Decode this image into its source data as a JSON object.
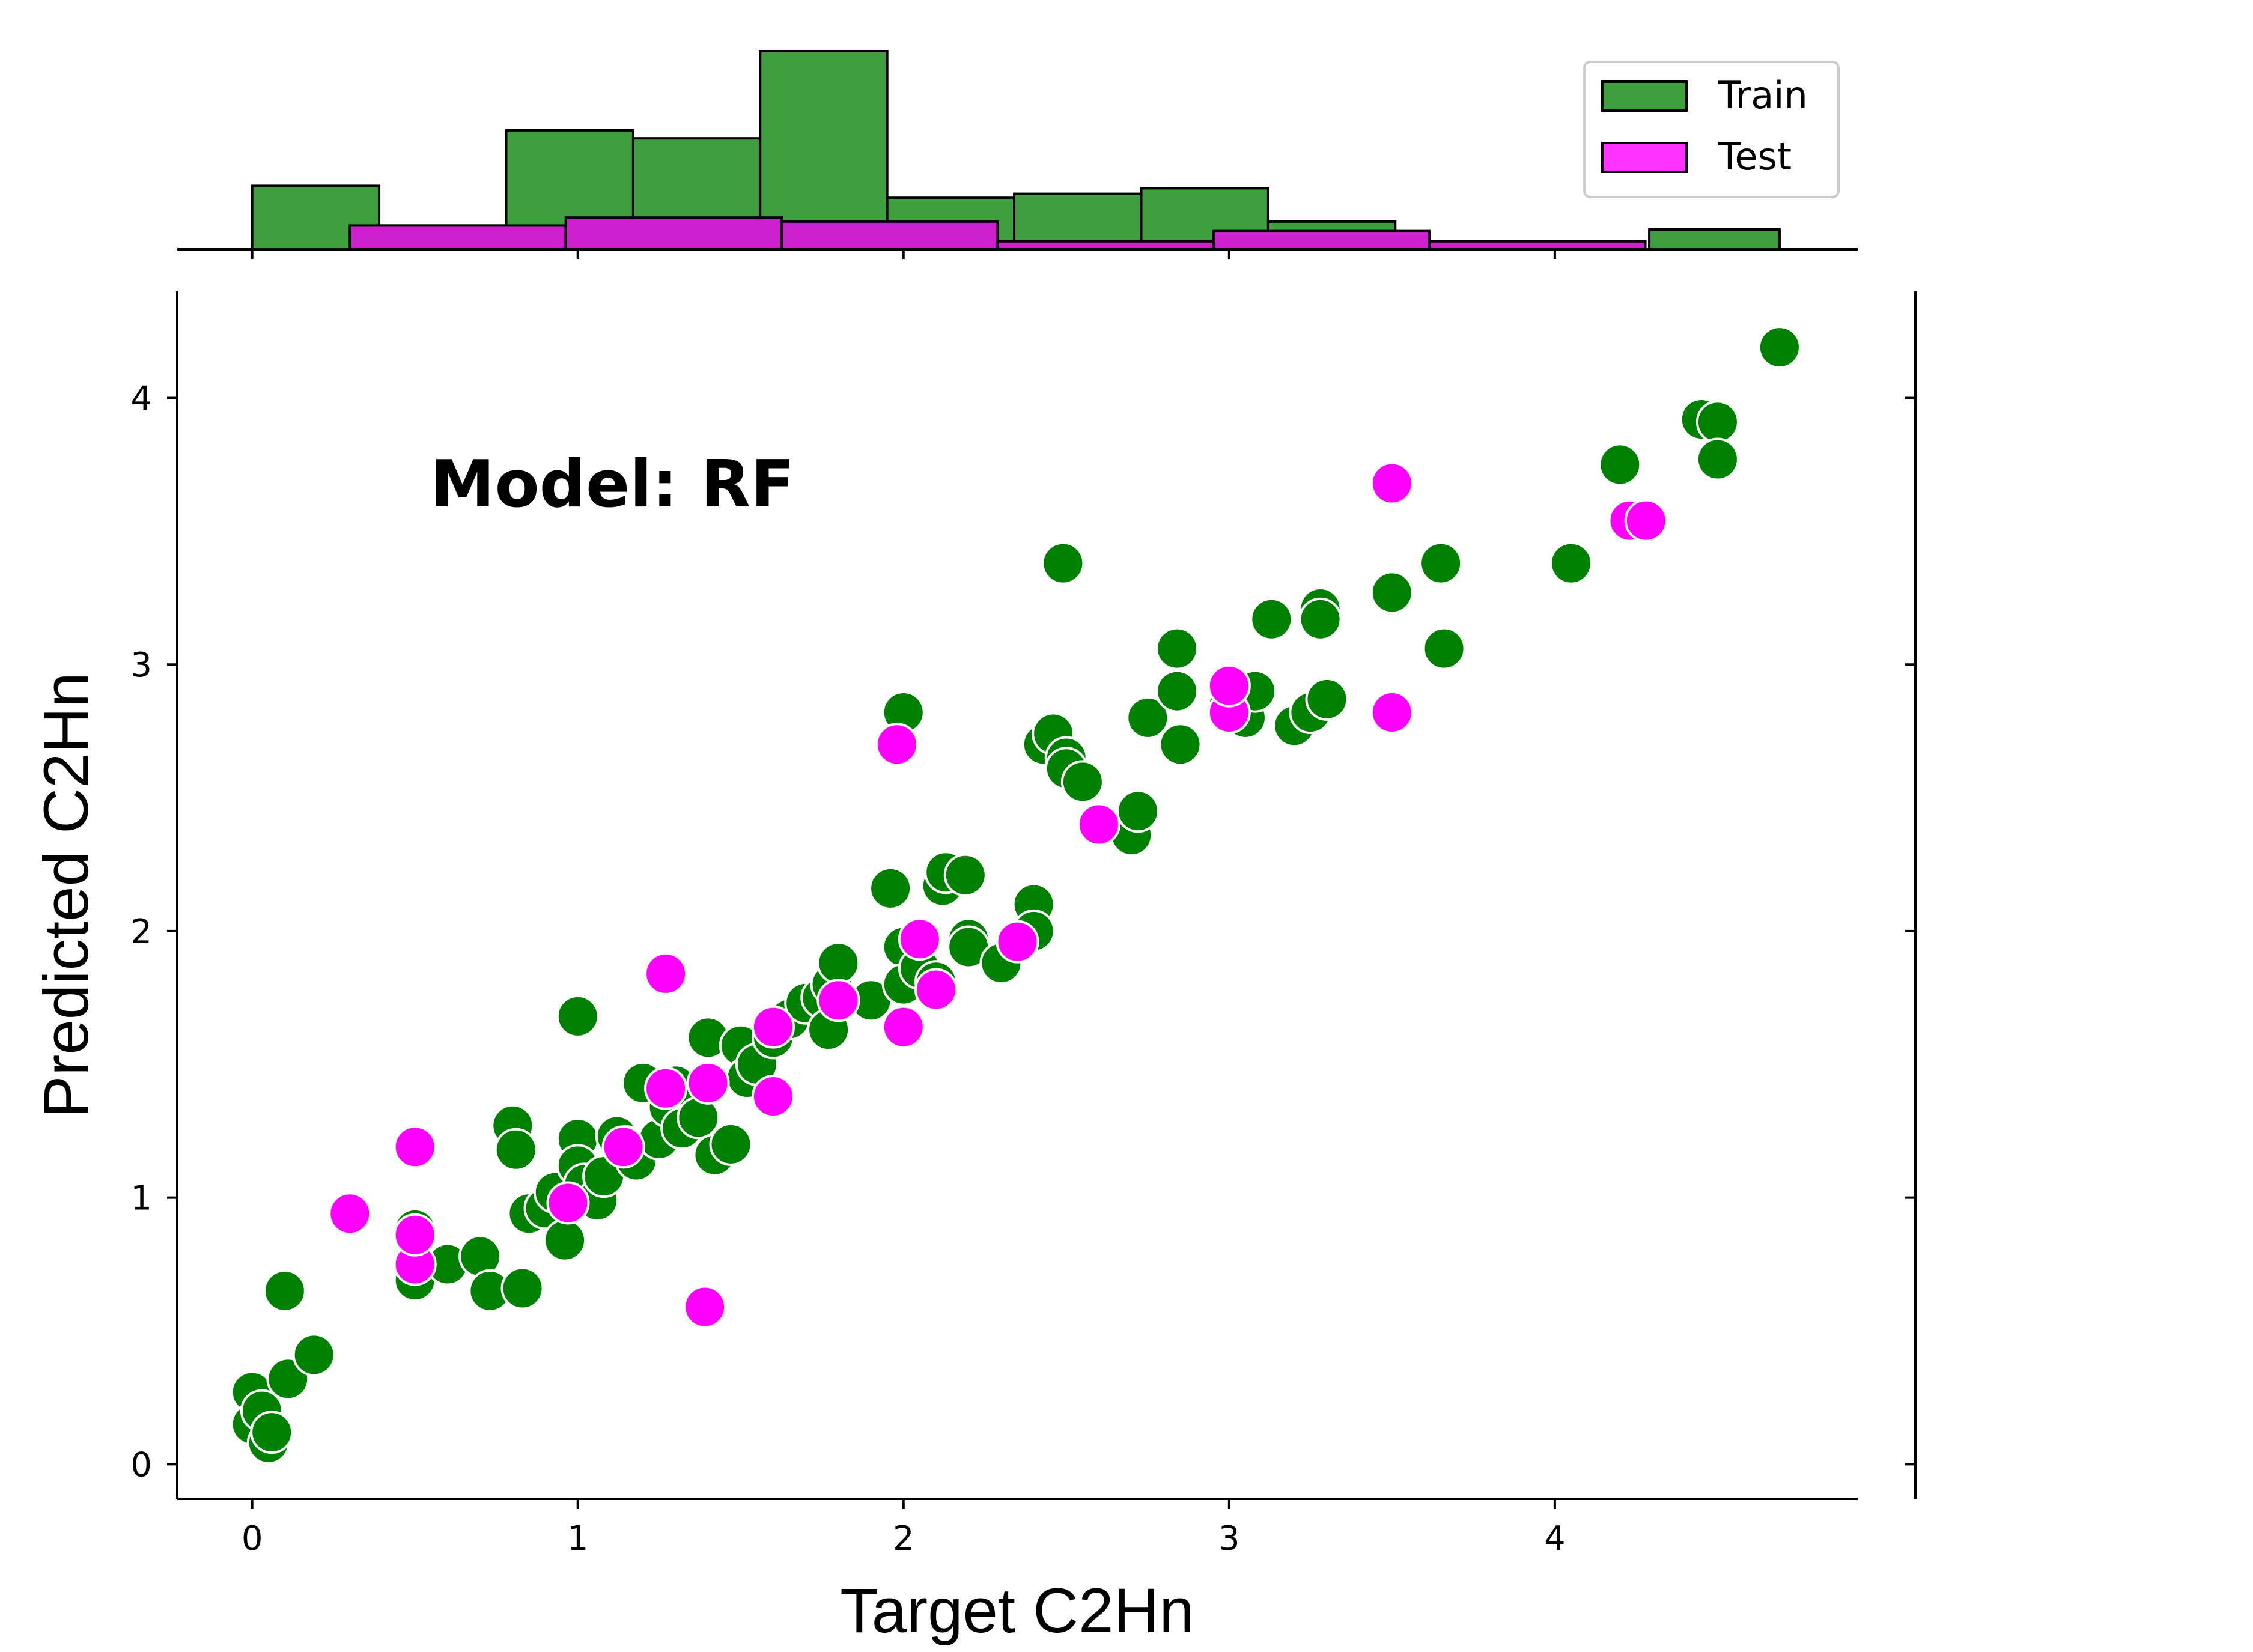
{
  "chart_data": {
    "type": "scatter",
    "annotation": "Model: RF",
    "xlabel": "Target C2Hn",
    "ylabel": "Predicted C2Hn",
    "xlim": [
      -0.23,
      4.93
    ],
    "ylim": [
      -0.13,
      4.4
    ],
    "x_ticks": [
      0,
      1,
      2,
      3,
      4
    ],
    "y_ticks": [
      0,
      1,
      2,
      3,
      4
    ],
    "grid": false,
    "colors": {
      "train": "#008000",
      "test": "#ff00ff",
      "train_hist": "#3f9f3f",
      "test_hist": "#cc20cc"
    },
    "legend": {
      "position": "top-right",
      "entries": [
        "Train",
        "Test"
      ]
    },
    "series": [
      {
        "name": "Train",
        "points": [
          [
            0.0,
            0.27
          ],
          [
            0.0,
            0.15
          ],
          [
            0.03,
            0.2
          ],
          [
            0.05,
            0.08
          ],
          [
            0.06,
            0.12
          ],
          [
            0.1,
            0.65
          ],
          [
            0.11,
            0.32
          ],
          [
            0.19,
            0.41
          ],
          [
            0.5,
            0.88
          ],
          [
            0.5,
            0.69
          ],
          [
            0.6,
            0.75
          ],
          [
            0.7,
            0.78
          ],
          [
            0.73,
            0.65
          ],
          [
            0.8,
            1.27
          ],
          [
            0.81,
            1.18
          ],
          [
            0.83,
            0.66
          ],
          [
            0.85,
            0.94
          ],
          [
            0.9,
            0.96
          ],
          [
            0.93,
            1.02
          ],
          [
            0.96,
            0.84
          ],
          [
            1.0,
            1.68
          ],
          [
            1.0,
            1.22
          ],
          [
            1.0,
            1.12
          ],
          [
            1.02,
            1.05
          ],
          [
            1.06,
            0.99
          ],
          [
            1.08,
            1.08
          ],
          [
            1.12,
            1.23
          ],
          [
            1.15,
            1.19
          ],
          [
            1.18,
            1.14
          ],
          [
            1.2,
            1.43
          ],
          [
            1.25,
            1.22
          ],
          [
            1.28,
            1.34
          ],
          [
            1.3,
            1.42
          ],
          [
            1.32,
            1.26
          ],
          [
            1.37,
            1.3
          ],
          [
            1.4,
            1.6
          ],
          [
            1.42,
            1.16
          ],
          [
            1.47,
            1.2
          ],
          [
            1.5,
            1.57
          ],
          [
            1.52,
            1.45
          ],
          [
            1.55,
            1.5
          ],
          [
            1.6,
            1.6
          ],
          [
            1.65,
            1.67
          ],
          [
            1.7,
            1.73
          ],
          [
            1.75,
            1.75
          ],
          [
            1.77,
            1.63
          ],
          [
            1.78,
            1.8
          ],
          [
            1.8,
            1.88
          ],
          [
            1.9,
            1.74
          ],
          [
            1.96,
            2.16
          ],
          [
            2.0,
            2.82
          ],
          [
            2.0,
            1.94
          ],
          [
            2.0,
            1.8
          ],
          [
            2.05,
            1.86
          ],
          [
            2.1,
            1.81
          ],
          [
            2.12,
            2.17
          ],
          [
            2.13,
            2.22
          ],
          [
            2.19,
            2.21
          ],
          [
            2.2,
            1.97
          ],
          [
            2.2,
            1.94
          ],
          [
            2.3,
            1.88
          ],
          [
            2.4,
            2.1
          ],
          [
            2.4,
            2.0
          ],
          [
            2.43,
            2.7
          ],
          [
            2.46,
            2.74
          ],
          [
            2.49,
            3.38
          ],
          [
            2.5,
            2.65
          ],
          [
            2.5,
            2.61
          ],
          [
            2.55,
            2.56
          ],
          [
            2.7,
            2.36
          ],
          [
            2.72,
            2.45
          ],
          [
            2.75,
            2.8
          ],
          [
            2.84,
            3.06
          ],
          [
            2.84,
            2.9
          ],
          [
            2.85,
            2.7
          ],
          [
            3.0,
            2.85
          ],
          [
            3.05,
            2.8
          ],
          [
            3.08,
            2.9
          ],
          [
            3.13,
            3.17
          ],
          [
            3.2,
            2.77
          ],
          [
            3.25,
            2.82
          ],
          [
            3.28,
            3.21
          ],
          [
            3.28,
            3.17
          ],
          [
            3.3,
            2.87
          ],
          [
            3.5,
            3.27
          ],
          [
            3.65,
            3.38
          ],
          [
            3.66,
            3.06
          ],
          [
            4.05,
            3.38
          ],
          [
            4.2,
            3.75
          ],
          [
            4.45,
            3.92
          ],
          [
            4.5,
            3.91
          ],
          [
            4.5,
            3.77
          ],
          [
            4.69,
            4.19
          ]
        ]
      },
      {
        "name": "Test",
        "points": [
          [
            0.3,
            0.94
          ],
          [
            0.5,
            1.19
          ],
          [
            0.5,
            0.75
          ],
          [
            0.5,
            0.86
          ],
          [
            0.97,
            0.98
          ],
          [
            1.14,
            1.19
          ],
          [
            1.27,
            1.84
          ],
          [
            1.27,
            1.41
          ],
          [
            1.39,
            0.59
          ],
          [
            1.4,
            1.43
          ],
          [
            1.6,
            1.38
          ],
          [
            1.6,
            1.64
          ],
          [
            1.8,
            1.74
          ],
          [
            1.98,
            2.7
          ],
          [
            2.0,
            1.64
          ],
          [
            2.05,
            1.97
          ],
          [
            2.1,
            1.78
          ],
          [
            2.35,
            1.96
          ],
          [
            2.6,
            2.4
          ],
          [
            3.0,
            2.82
          ],
          [
            3.0,
            2.92
          ],
          [
            3.5,
            3.68
          ],
          [
            3.5,
            2.82
          ],
          [
            4.23,
            3.54
          ],
          [
            4.28,
            3.54
          ]
        ]
      }
    ],
    "histogram": {
      "Train": {
        "bin_edges": [
          0.0,
          0.39,
          0.78,
          1.17,
          1.56,
          1.95,
          2.34,
          2.73,
          3.12,
          3.51,
          3.9,
          4.29,
          4.69
        ],
        "counts": [
          8,
          3,
          15,
          14,
          25,
          6.5,
          7,
          7.7,
          3.5,
          0,
          0,
          2.5
        ]
      },
      "Test": {
        "bin_edges": [
          0.3,
          0.963,
          1.626,
          2.289,
          2.952,
          3.615,
          4.278
        ],
        "counts": [
          3,
          4,
          3.5,
          1,
          2.3,
          1
        ]
      }
    }
  }
}
